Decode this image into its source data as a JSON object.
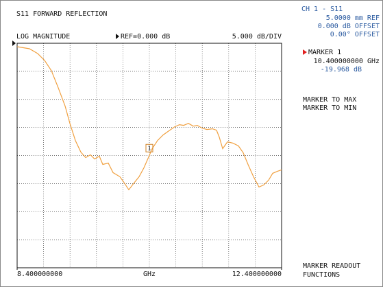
{
  "chart_data": {
    "type": "line",
    "title": "S11 FORWARD REFLECTION",
    "format": "LOG MAGNITUDE",
    "reference": "REF=0.000 dB",
    "scale": "5.000 dB/DIV",
    "x_label": "GHz",
    "xlim": [
      8.4,
      12.4
    ],
    "xticks": [
      {
        "value": 8.4,
        "label": "8.400000000"
      },
      {
        "value": 12.4,
        "label": "12.400000000"
      }
    ],
    "ylim": [
      -40,
      0
    ],
    "grid": true,
    "series": [
      {
        "name": "S11",
        "color": "#f0a040",
        "x": [
          8.4,
          8.587,
          8.711,
          8.815,
          8.918,
          9.022,
          9.126,
          9.198,
          9.281,
          9.364,
          9.436,
          9.509,
          9.571,
          9.644,
          9.695,
          9.778,
          9.851,
          9.954,
          10.027,
          10.089,
          10.162,
          10.245,
          10.317,
          10.4,
          10.442,
          10.524,
          10.607,
          10.68,
          10.783,
          10.856,
          10.918,
          10.991,
          11.063,
          11.125,
          11.198,
          11.27,
          11.353,
          11.416,
          11.457,
          11.509,
          11.581,
          11.664,
          11.747,
          11.82,
          11.892,
          11.975,
          12.058,
          12.131,
          12.203,
          12.265,
          12.338,
          12.4
        ],
        "values": [
          -0.61,
          -0.98,
          -1.83,
          -3.05,
          -4.88,
          -7.93,
          -11.22,
          -14.27,
          -17.32,
          -19.39,
          -20.37,
          -19.88,
          -20.61,
          -20.12,
          -21.59,
          -21.34,
          -23.05,
          -23.78,
          -24.99,
          -26.1,
          -24.99,
          -23.78,
          -22.2,
          -19.968,
          -18.78,
          -17.32,
          -16.34,
          -15.73,
          -14.88,
          -14.51,
          -14.63,
          -14.27,
          -14.76,
          -14.63,
          -15.12,
          -15.37,
          -15.24,
          -15.49,
          -16.71,
          -18.78,
          -17.56,
          -17.8,
          -18.29,
          -19.51,
          -21.59,
          -23.78,
          -25.61,
          -25.24,
          -24.39,
          -23.17,
          -22.8,
          -22.56
        ]
      }
    ],
    "marker": {
      "label": "1",
      "x": 10.4,
      "value": -19.968
    }
  },
  "panel": {
    "channel": "CH 1 - S11",
    "lines": [
      "5.0000 mm REF",
      "0.000 dB OFFSET",
      "0.00° OFFSET"
    ],
    "marker_title": "MARKER 1",
    "marker_freq": "10.400000000 GHz",
    "marker_value": "-19.968 dB",
    "menu": [
      "MARKER TO MAX",
      "MARKER TO MIN"
    ],
    "footer": [
      "MARKER READOUT",
      "FUNCTIONS"
    ]
  }
}
